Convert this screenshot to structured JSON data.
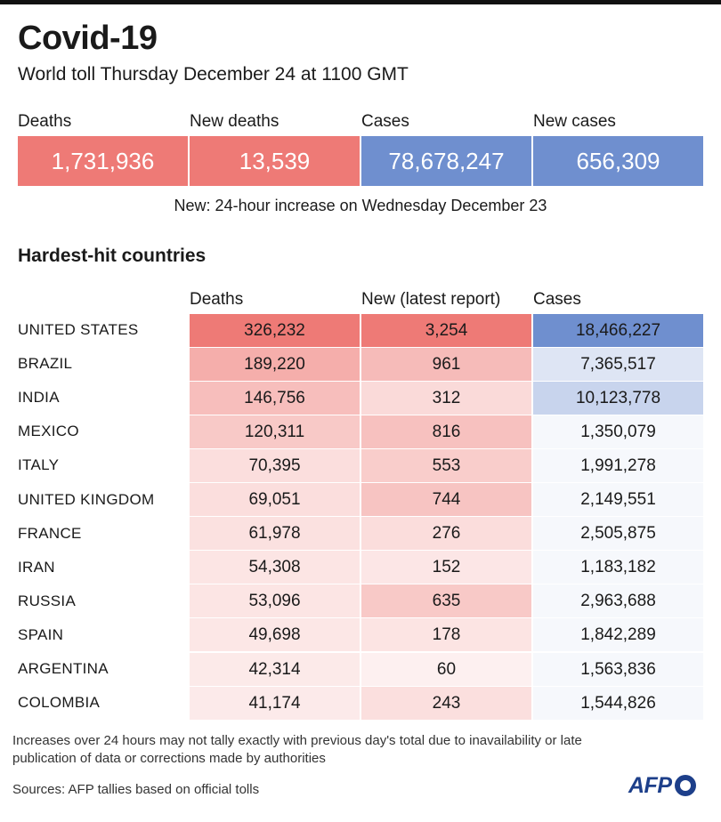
{
  "header": {
    "title": "Covid-19",
    "subtitle": "World toll Thursday December 24 at 1100 GMT"
  },
  "summary": [
    {
      "label": "Deaths",
      "value": "1,731,936",
      "color": "#ee7a76"
    },
    {
      "label": "New deaths",
      "value": "13,539",
      "color": "#ee7a76"
    },
    {
      "label": "Cases",
      "value": "78,678,247",
      "color": "#6f8fcf"
    },
    {
      "label": "New cases",
      "value": "656,309",
      "color": "#6f8fcf"
    }
  ],
  "note": "New: 24-hour increase on Wednesday December 23",
  "section_title": "Hardest-hit countries",
  "footnote": "Increases over 24 hours may not tally exactly with previous day's total due to inavailability or late publication of data or corrections made by authorities",
  "source": "Sources: AFP tallies based on official tolls",
  "logo": "AFP",
  "colors": {
    "deaths_scale": "#ee7a76",
    "cases_scale": "#6f8fcf",
    "text": "#1a1a1a"
  },
  "chart_data": {
    "type": "table",
    "columns": [
      "Deaths",
      "New (latest report)",
      "Cases"
    ],
    "rows": [
      {
        "country": "UNITED STATES",
        "deaths": 326232,
        "new": 3254,
        "cases": 18466227,
        "deaths_label": "326,232",
        "new_label": "3,254",
        "cases_label": "18,466,227"
      },
      {
        "country": "BRAZIL",
        "deaths": 189220,
        "new": 961,
        "cases": 7365517,
        "deaths_label": "189,220",
        "new_label": "961",
        "cases_label": "7,365,517"
      },
      {
        "country": "INDIA",
        "deaths": 146756,
        "new": 312,
        "cases": 10123778,
        "deaths_label": "146,756",
        "new_label": "312",
        "cases_label": "10,123,778"
      },
      {
        "country": "MEXICO",
        "deaths": 120311,
        "new": 816,
        "cases": 1350079,
        "deaths_label": "120,311",
        "new_label": "816",
        "cases_label": "1,350,079"
      },
      {
        "country": "ITALY",
        "deaths": 70395,
        "new": 553,
        "cases": 1991278,
        "deaths_label": "70,395",
        "new_label": "553",
        "cases_label": "1,991,278"
      },
      {
        "country": "UNITED KINGDOM",
        "deaths": 69051,
        "new": 744,
        "cases": 2149551,
        "deaths_label": "69,051",
        "new_label": "744",
        "cases_label": "2,149,551"
      },
      {
        "country": "FRANCE",
        "deaths": 61978,
        "new": 276,
        "cases": 2505875,
        "deaths_label": "61,978",
        "new_label": "276",
        "cases_label": "2,505,875"
      },
      {
        "country": "IRAN",
        "deaths": 54308,
        "new": 152,
        "cases": 1183182,
        "deaths_label": "54,308",
        "new_label": "152",
        "cases_label": "1,183,182"
      },
      {
        "country": "RUSSIA",
        "deaths": 53096,
        "new": 635,
        "cases": 2963688,
        "deaths_label": "53,096",
        "new_label": "635",
        "cases_label": "2,963,688"
      },
      {
        "country": "SPAIN",
        "deaths": 49698,
        "new": 178,
        "cases": 1842289,
        "deaths_label": "49,698",
        "new_label": "178",
        "cases_label": "1,842,289"
      },
      {
        "country": "ARGENTINA",
        "deaths": 42314,
        "new": 60,
        "cases": 1563836,
        "deaths_label": "42,314",
        "new_label": "60",
        "cases_label": "1,563,836"
      },
      {
        "country": "COLOMBIA",
        "deaths": 41174,
        "new": 243,
        "cases": 1544826,
        "deaths_label": "41,174",
        "new_label": "243",
        "cases_label": "1,544,826"
      }
    ]
  }
}
